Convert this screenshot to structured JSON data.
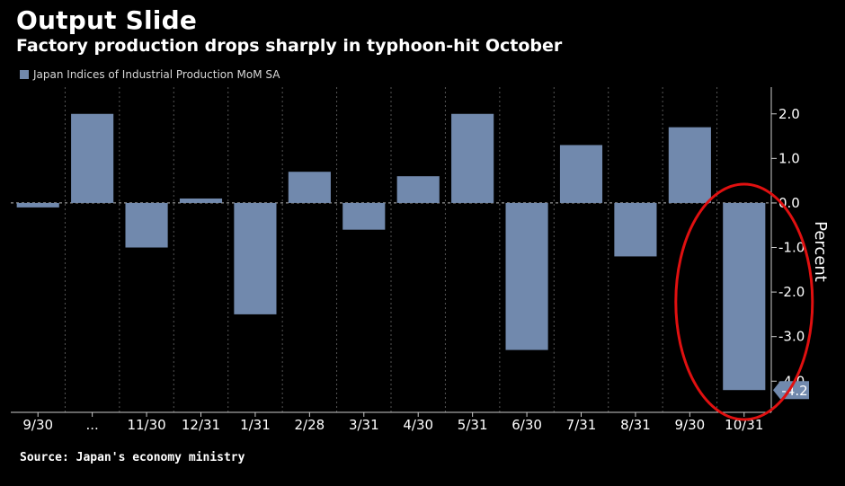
{
  "title": "Output Slide",
  "subtitle": "Factory production drops sharply in typhoon-hit October",
  "legend": {
    "label": "Japan Indices of Industrial Production MoM SA",
    "color": "#7189ad"
  },
  "source": "Source: Japan's economy ministry",
  "colors": {
    "bar": "#7189ad",
    "background": "#000000",
    "grid": "#555555",
    "annotation_circle": "#e01010",
    "text": "#ffffff"
  },
  "chart_data": {
    "type": "bar",
    "categories": [
      "9/30",
      "...",
      "11/30",
      "12/31",
      "1/31",
      "2/28",
      "3/31",
      "4/30",
      "5/31",
      "6/30",
      "7/31",
      "8/31",
      "9/30",
      "10/31"
    ],
    "series": [
      {
        "name": "Japan Indices of Industrial Production MoM SA",
        "values": [
          -0.1,
          2.0,
          -1.0,
          0.1,
          -2.5,
          0.7,
          -0.6,
          0.6,
          2.0,
          -3.3,
          1.3,
          -1.2,
          1.7,
          -4.2
        ]
      }
    ],
    "ylabel": "Percent",
    "ylim": [
      -4.7,
      2.6
    ],
    "yticks": [
      2.0,
      1.0,
      0.0,
      -1.0,
      -2.0,
      -3.0,
      -4.0
    ],
    "ytick_labels": [
      "2.0",
      "1.0",
      "0.0",
      "-1.0",
      "-2.0",
      "-3.0",
      "-4.0"
    ],
    "last_value_label": "-4.2",
    "y_axis_position": "right",
    "grid": "vertical dashed",
    "legend_position": "top-left",
    "annotation": "red ellipse around last bar"
  }
}
